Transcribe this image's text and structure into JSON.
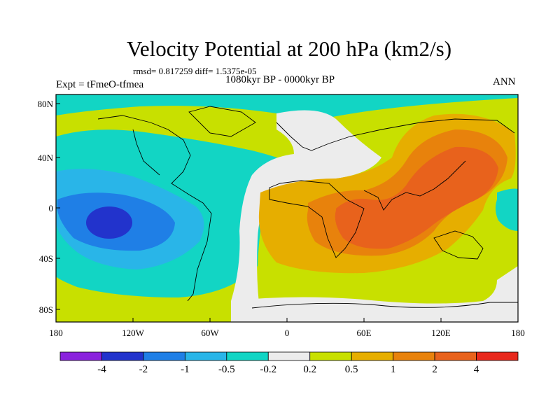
{
  "title": "Velocity Potential at 200 hPa (km2/s)",
  "stats_line": "rmsd= 0.817259  diff= 1.5375e-05",
  "period_line": "1080kyr BP - 0000kyr BP",
  "experiment_line": "Expt = tFmeO-tfmea",
  "season": "ANN",
  "map": {
    "projection": "cylindrical-equidistant",
    "lon_range": [
      -180,
      180
    ],
    "lat_range": [
      -90,
      90
    ],
    "x_ticks": [
      "180",
      "120W",
      "60W",
      "0",
      "60E",
      "120E",
      "180"
    ],
    "y_ticks": [
      "80N",
      "40N",
      "0",
      "40S",
      "80S"
    ],
    "background_color": "#c8e000",
    "regions": [
      {
        "name": "north-polar-low",
        "level": "-0.5",
        "color": "#12d5c4"
      },
      {
        "name": "pacific-atlantic-low",
        "level": "-0.5",
        "color": "#12d5c4"
      },
      {
        "name": "pacific-low-inner",
        "level": "-1",
        "color": "#29b5e8"
      },
      {
        "name": "pacific-low-core",
        "level": "-2",
        "color": "#1f7fe6"
      },
      {
        "name": "pacific-low-center",
        "level": "-4",
        "color": "#2233cc"
      },
      {
        "name": "atlantic-neutral-band",
        "level": "-0.2",
        "color": "#ececec"
      },
      {
        "name": "indian-ocean-high",
        "level": "0.5",
        "color": "#e6ae00"
      },
      {
        "name": "africa-asia-high",
        "level": "1",
        "color": "#e8820c"
      },
      {
        "name": "maritime-continent-high",
        "level": "2",
        "color": "#e8621c"
      },
      {
        "name": "antarctic-neutral",
        "level": "-0.2",
        "color": "#ececec"
      },
      {
        "name": "east-pacific-low",
        "level": "-0.5",
        "color": "#12d5c4"
      }
    ]
  },
  "colorbar": {
    "colors": [
      "#8a22dd",
      "#2233cc",
      "#1f7fe6",
      "#29b5e8",
      "#12d5c4",
      "#ececec",
      "#c8e000",
      "#e6ae00",
      "#e8820c",
      "#e8621c",
      "#e8281c"
    ],
    "labels": [
      "-4",
      "-2",
      "-1",
      "-0.5",
      "-0.2",
      "0.2",
      "0.5",
      "1",
      "2",
      "4"
    ]
  }
}
